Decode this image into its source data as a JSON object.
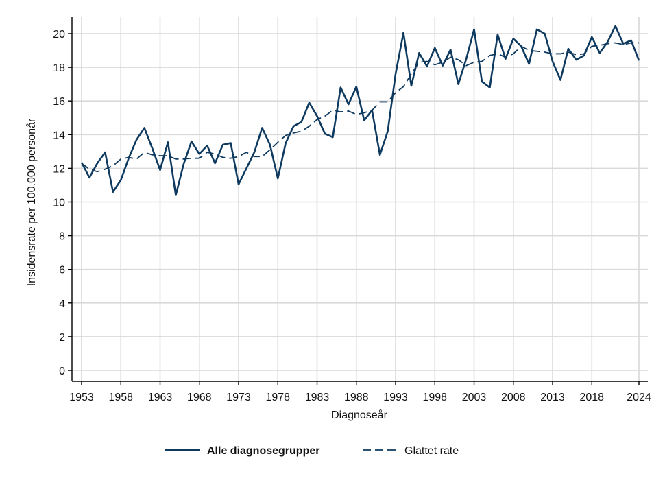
{
  "chart_data": {
    "type": "line",
    "title": "",
    "xlabel": "Diagnoseår",
    "ylabel": "Insidensrate per 100.000 personår",
    "xlim": [
      1953,
      2024
    ],
    "ylim": [
      0,
      20
    ],
    "xticks": [
      1953,
      1958,
      1963,
      1968,
      1973,
      1978,
      1983,
      1988,
      1993,
      1998,
      2003,
      2008,
      2013,
      2018,
      2024
    ],
    "yticks": [
      0,
      2,
      4,
      6,
      8,
      10,
      12,
      14,
      16,
      18,
      20
    ],
    "grid": true,
    "legend_position": "bottom",
    "colors": {
      "line": "#0f3a5f",
      "grid": "#d9d9d9",
      "axis": "#000000"
    },
    "series": [
      {
        "name": "Alle diagnosegrupper",
        "style": "solid",
        "x": [
          1953,
          1954,
          1955,
          1956,
          1957,
          1958,
          1959,
          1960,
          1961,
          1962,
          1963,
          1964,
          1965,
          1966,
          1967,
          1968,
          1969,
          1970,
          1971,
          1972,
          1973,
          1974,
          1975,
          1976,
          1977,
          1978,
          1979,
          1980,
          1981,
          1982,
          1983,
          1984,
          1985,
          1986,
          1987,
          1988,
          1989,
          1990,
          1991,
          1992,
          1993,
          1994,
          1995,
          1996,
          1997,
          1998,
          1999,
          2000,
          2001,
          2002,
          2003,
          2004,
          2005,
          2006,
          2007,
          2008,
          2009,
          2010,
          2011,
          2012,
          2013,
          2014,
          2015,
          2016,
          2017,
          2018,
          2019,
          2020,
          2021,
          2022,
          2023,
          2024
        ],
        "values": [
          12.35,
          11.45,
          12.3,
          12.95,
          10.6,
          11.3,
          12.6,
          13.7,
          14.4,
          13.2,
          11.9,
          13.55,
          10.4,
          12.25,
          13.6,
          12.85,
          13.35,
          12.3,
          13.4,
          13.5,
          11.05,
          12.0,
          12.95,
          14.4,
          13.4,
          11.4,
          13.5,
          14.5,
          14.75,
          15.9,
          15.1,
          14.05,
          13.85,
          16.8,
          15.8,
          16.85,
          14.85,
          15.45,
          12.8,
          14.2,
          17.6,
          20.05,
          16.9,
          18.85,
          18.05,
          19.15,
          18.1,
          19.05,
          17.0,
          18.5,
          20.25,
          17.15,
          16.8,
          19.95,
          18.5,
          19.7,
          19.25,
          18.2,
          20.25,
          20.0,
          18.35,
          17.25,
          19.1,
          18.45,
          18.7,
          19.8,
          18.85,
          19.5,
          20.45,
          19.4,
          19.6,
          18.4
        ]
      },
      {
        "name": "Glattet rate",
        "style": "dashed",
        "x": [
          1953,
          1954,
          1955,
          1956,
          1957,
          1958,
          1959,
          1960,
          1961,
          1962,
          1963,
          1964,
          1965,
          1966,
          1967,
          1968,
          1969,
          1970,
          1971,
          1972,
          1973,
          1974,
          1975,
          1976,
          1977,
          1978,
          1979,
          1980,
          1981,
          1982,
          1983,
          1984,
          1985,
          1986,
          1987,
          1988,
          1989,
          1990,
          1991,
          1992,
          1993,
          1994,
          1995,
          1996,
          1997,
          1998,
          1999,
          2000,
          2001,
          2002,
          2003,
          2004,
          2005,
          2006,
          2007,
          2008,
          2009,
          2010,
          2011,
          2012,
          2013,
          2014,
          2015,
          2016,
          2017,
          2018,
          2019,
          2020,
          2021,
          2022,
          2023,
          2024
        ],
        "values": [
          12.3,
          11.95,
          11.8,
          11.95,
          12.15,
          12.55,
          12.65,
          12.55,
          12.95,
          12.8,
          12.75,
          12.75,
          12.55,
          12.55,
          12.6,
          12.6,
          12.95,
          12.85,
          12.65,
          12.6,
          12.7,
          12.95,
          12.7,
          12.7,
          13.1,
          13.55,
          13.95,
          14.1,
          14.2,
          14.5,
          14.9,
          15.1,
          15.45,
          15.35,
          15.4,
          15.2,
          15.3,
          15.45,
          15.95,
          15.95,
          16.5,
          16.85,
          17.6,
          18.3,
          18.35,
          18.15,
          18.3,
          18.6,
          18.45,
          18.1,
          18.3,
          18.35,
          18.7,
          18.8,
          18.6,
          18.8,
          19.25,
          19.0,
          18.95,
          18.9,
          18.8,
          18.8,
          18.9,
          18.75,
          18.8,
          19.25,
          19.3,
          19.4,
          19.45,
          19.35,
          19.45,
          19.45
        ]
      }
    ]
  }
}
